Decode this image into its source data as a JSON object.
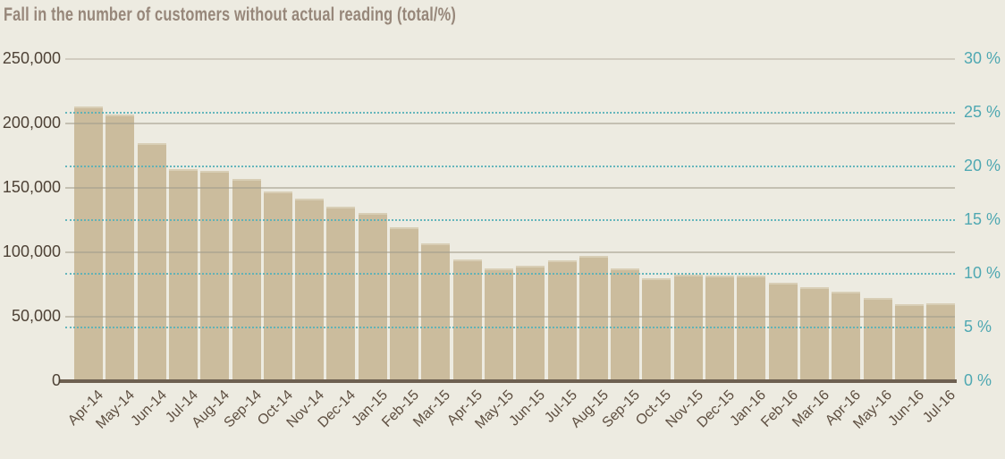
{
  "title": "Fall in the number of customers without actual reading (total/%)",
  "colors": {
    "background": "#EDEBE1",
    "bar_fill": "#CBBC9D",
    "bar_top_edge": "#D8CEB5",
    "grid_solid": "#A39C8C",
    "grid_dotted_teal": "#57B1B9",
    "axis_baseline": "#6E6051",
    "y_left_label": "#4E4236",
    "y_right_label": "#4FA8B2",
    "x_label": "#5E4F41",
    "title_text": "#97877A"
  },
  "chart_data": {
    "type": "bar",
    "title": "Fall in the number of customers without actual reading (total/%)",
    "categories": [
      "Apr-14",
      "May-14",
      "Jun-14",
      "Jul-14",
      "Aug-14",
      "Sep-14",
      "Oct-14",
      "Nov-14",
      "Dec-14",
      "Jan-15",
      "Feb-15",
      "Mar-15",
      "Apr-15",
      "May-15",
      "Jun-15",
      "Jul-15",
      "Aug-15",
      "Sep-15",
      "Oct-15",
      "Nov-15",
      "Dec-15",
      "Jan-16",
      "Feb-16",
      "Mar-16",
      "Apr-16",
      "May-16",
      "Jun-16",
      "Jul-16"
    ],
    "values": [
      212500,
      206500,
      184000,
      164000,
      162500,
      156000,
      146500,
      141000,
      135000,
      130000,
      118500,
      106000,
      94000,
      86500,
      89000,
      93000,
      96500,
      87000,
      79500,
      82000,
      81000,
      81000,
      75500,
      72500,
      69000,
      64000,
      59000,
      60000
    ],
    "values_percent": [
      25.5,
      24.8,
      22.1,
      19.7,
      19.5,
      18.7,
      17.6,
      16.9,
      16.2,
      15.6,
      14.2,
      12.7,
      11.3,
      10.4,
      10.7,
      11.2,
      11.6,
      10.4,
      9.5,
      9.8,
      9.7,
      9.7,
      9.1,
      8.7,
      8.3,
      7.7,
      7.1,
      7.2
    ],
    "y_left": {
      "tick_values": [
        0,
        50000,
        100000,
        150000,
        200000,
        250000
      ],
      "tick_labels": [
        "0",
        "50,000",
        "100,000",
        "150,000",
        "200,000",
        "250,000"
      ],
      "range": [
        0,
        250000
      ]
    },
    "y_right": {
      "tick_values": [
        0,
        5,
        10,
        15,
        20,
        25,
        30
      ],
      "tick_labels": [
        "0 %",
        "5 %",
        "10 %",
        "15 %",
        "20 %",
        "25 %",
        "30 %"
      ],
      "range": [
        0,
        30
      ]
    },
    "grid": {
      "solid_lines_at_left_axis_ticks": true,
      "dotted_teal_lines_at_right_axis_ticks": true
    },
    "legend": null
  }
}
